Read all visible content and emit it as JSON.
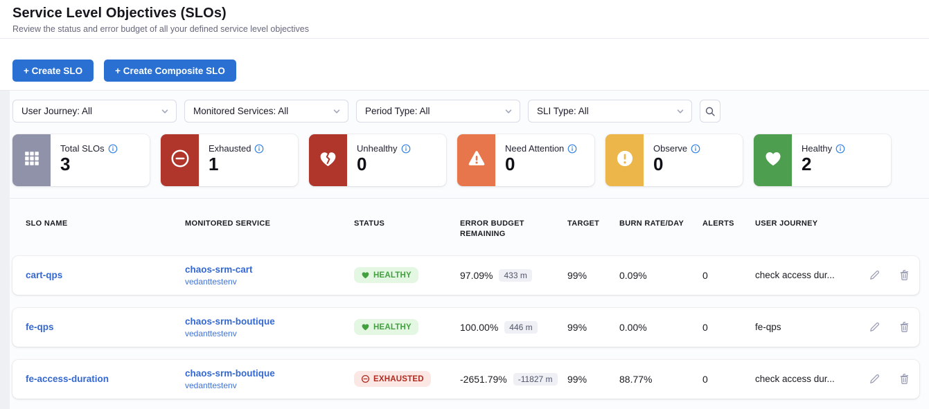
{
  "page": {
    "title": "Service Level Objectives (SLOs)",
    "subtitle": "Review the status and error budget of all your defined service level objectives"
  },
  "toolbar": {
    "create_slo_label": "+ Create SLO",
    "create_composite_slo_label": "+ Create Composite SLO"
  },
  "filters": [
    {
      "label": "User Journey: All"
    },
    {
      "label": "Monitored Services: All"
    },
    {
      "label": "Period Type: All"
    },
    {
      "label": "SLI Type: All"
    }
  ],
  "icons": {
    "search": "search-icon",
    "filter_chevron": "chevron-down-icon",
    "info": "info-icon",
    "edit": "edit-pencil-icon",
    "delete": "trash-icon"
  },
  "summary_cards": [
    {
      "label": "Total SLOs",
      "value": "3",
      "icon": "grid-icon",
      "color": "#9092a9"
    },
    {
      "label": "Exhausted",
      "value": "1",
      "icon": "minus-circle-icon",
      "color": "#b0352b"
    },
    {
      "label": "Unhealthy",
      "value": "0",
      "icon": "broken-heart-icon",
      "color": "#b0352b"
    },
    {
      "label": "Need Attention",
      "value": "0",
      "icon": "warning-triangle-icon",
      "color": "#e8764c"
    },
    {
      "label": "Observe",
      "value": "0",
      "icon": "exclamation-circle-icon",
      "color": "#edb climbing"
    },
    {
      "label": "Healthy",
      "value": "2",
      "icon": "heart-icon",
      "color": "#4d9e4f"
    }
  ],
  "table": {
    "columns": [
      "SLO Name",
      "Monitored Service",
      "Status",
      "Error Budget Remaining",
      "Target",
      "Burn Rate/Day",
      "Alerts",
      "User Journey"
    ],
    "rows": [
      {
        "slo_name": "cart-qps",
        "service": "chaos-srm-cart",
        "environment": "vedanttestenv",
        "status": "HEALTHY",
        "status_icon": "heart-icon",
        "error_budget_pct": "97.09%",
        "error_budget_minutes": "433 m",
        "target": "99%",
        "burn_rate": "0.09%",
        "alerts": "0",
        "user_journey": "check access dur..."
      },
      {
        "slo_name": "fe-qps",
        "service": "chaos-srm-boutique",
        "environment": "vedanttestenv",
        "status": "HEALTHY",
        "status_icon": "heart-icon",
        "error_budget_pct": "100.00%",
        "error_budget_minutes": "446 m",
        "target": "99%",
        "burn_rate": "0.00%",
        "alerts": "0",
        "user_journey": "fe-qps"
      },
      {
        "slo_name": "fe-access-duration",
        "service": "chaos-srm-boutique",
        "environment": "vedanttestenv",
        "status": "EXHAUSTED",
        "status_icon": "minus-circle-icon",
        "error_budget_pct": "-2651.79%",
        "error_budget_minutes": "-11827 m",
        "target": "99%",
        "burn_rate": "88.77%",
        "alerts": "0",
        "user_journey": "check access dur..."
      }
    ]
  },
  "colors": {
    "primary_button": "#2970d2",
    "link": "#3468d1",
    "healthy_badge_bg": "#e4f7e2",
    "healthy_badge_text": "#42a03f",
    "exhausted_badge_bg": "#fbe8e5",
    "exhausted_badge_text": "#b0291d",
    "card_total": "#9092a9",
    "card_exhausted": "#b0352b",
    "card_unhealthy": "#b0352b",
    "card_need_attention": "#e8764c",
    "card_observe": "#edb climbing2",
    "card_healthy": "#4d9e4f"
  }
}
